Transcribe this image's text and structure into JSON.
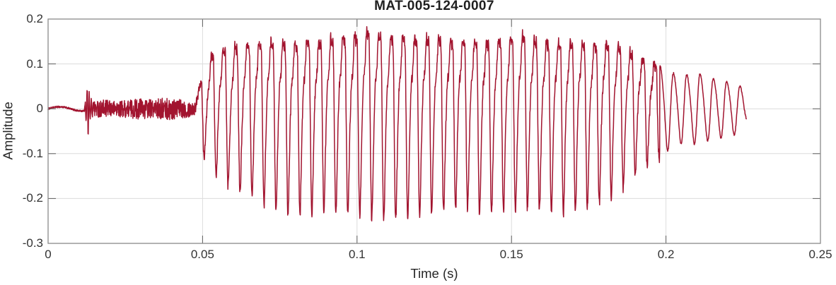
{
  "figure": {
    "title": "MAT-005-124-0007",
    "xlabel": "Time (s)",
    "ylabel": "Amplitude"
  },
  "chart_data": {
    "type": "line",
    "title": "MAT-005-124-0007",
    "xlabel": "Time (s)",
    "ylabel": "Amplitude",
    "xlim": [
      0,
      0.25
    ],
    "ylim": [
      -0.3,
      0.2
    ],
    "xticks": [
      0,
      0.05,
      0.1,
      0.15,
      0.2,
      0.25
    ],
    "xtick_labels": [
      "0",
      "0.05",
      "0.1",
      "0.15",
      "0.2",
      "0.25"
    ],
    "yticks": [
      -0.3,
      -0.2,
      -0.1,
      0,
      0.1,
      0.2
    ],
    "ytick_labels": [
      "-0.3",
      "-0.2",
      "-0.1",
      "0",
      "0.1",
      "0.2"
    ],
    "grid": true,
    "legend": null,
    "line_color": "#A2142F",
    "line_width": 1.5,
    "series_name": "audio waveform",
    "signal": {
      "description": "speech-like audio waveform: low-level noise, a click/burst at ~0.013 s, fricative noise until ~0.048 s, strong periodic voiced segment 0.048-0.198 s (peak +0.175, trough -0.25 near t=0.105-0.11), decaying smooth oscillation until 0.226 s",
      "duration_s": 0.226,
      "segments": [
        {
          "type": "quiet",
          "t": [
            0,
            0.0118
          ],
          "wiggle_hz": 70,
          "envelope": [
            [
              0,
              0.004
            ],
            [
              0.0118,
              0.005
            ]
          ]
        },
        {
          "type": "burst",
          "t": [
            0.0118,
            0.0148
          ],
          "freq_hz": 1500,
          "envelope": [
            [
              0.0118,
              0.006
            ],
            [
              0.0124,
              0.032
            ],
            [
              0.0127,
              0.058
            ],
            [
              0.013,
              0.045
            ],
            [
              0.0134,
              0.028
            ],
            [
              0.014,
              0.02
            ],
            [
              0.0148,
              0.016
            ]
          ]
        },
        {
          "type": "noise",
          "t": [
            0.0148,
            0.0478
          ],
          "envelope": [
            [
              0.0148,
              0.018
            ],
            [
              0.018,
              0.02
            ],
            [
              0.022,
              0.017
            ],
            [
              0.026,
              0.021
            ],
            [
              0.03,
              0.024
            ],
            [
              0.034,
              0.02
            ],
            [
              0.038,
              0.026
            ],
            [
              0.042,
              0.022
            ],
            [
              0.045,
              0.02
            ],
            [
              0.0478,
              0.014
            ]
          ]
        },
        {
          "type": "voiced",
          "t": [
            0.0478,
            0.198
          ],
          "f0_hz": 258,
          "phase": 0,
          "harmonics": [
            [
              1,
              1,
              0
            ],
            [
              2,
              0.45,
              2.2
            ],
            [
              3,
              0.18,
              4.2
            ],
            [
              4,
              0.07,
              1.0
            ]
          ],
          "upper_envelope": [
            [
              0.0478,
              0.03
            ],
            [
              0.05,
              0.07
            ],
            [
              0.053,
              0.12
            ],
            [
              0.056,
              0.135
            ],
            [
              0.06,
              0.14
            ],
            [
              0.07,
              0.15
            ],
            [
              0.08,
              0.15
            ],
            [
              0.09,
              0.155
            ],
            [
              0.095,
              0.16
            ],
            [
              0.1,
              0.165
            ],
            [
              0.104,
              0.175
            ],
            [
              0.11,
              0.16
            ],
            [
              0.12,
              0.158
            ],
            [
              0.13,
              0.155
            ],
            [
              0.14,
              0.15
            ],
            [
              0.148,
              0.155
            ],
            [
              0.153,
              0.165
            ],
            [
              0.16,
              0.15
            ],
            [
              0.17,
              0.148
            ],
            [
              0.18,
              0.148
            ],
            [
              0.185,
              0.14
            ],
            [
              0.19,
              0.12
            ],
            [
              0.194,
              0.105
            ],
            [
              0.198,
              0.095
            ]
          ],
          "lower_envelope": [
            [
              0.0478,
              -0.05
            ],
            [
              0.05,
              -0.1
            ],
            [
              0.053,
              -0.14
            ],
            [
              0.056,
              -0.16
            ],
            [
              0.06,
              -0.175
            ],
            [
              0.065,
              -0.195
            ],
            [
              0.07,
              -0.215
            ],
            [
              0.075,
              -0.23
            ],
            [
              0.08,
              -0.24
            ],
            [
              0.085,
              -0.235
            ],
            [
              0.09,
              -0.23
            ],
            [
              0.095,
              -0.235
            ],
            [
              0.1,
              -0.24
            ],
            [
              0.107,
              -0.25
            ],
            [
              0.112,
              -0.245
            ],
            [
              0.12,
              -0.24
            ],
            [
              0.128,
              -0.23
            ],
            [
              0.135,
              -0.22
            ],
            [
              0.14,
              -0.235
            ],
            [
              0.15,
              -0.23
            ],
            [
              0.157,
              -0.22
            ],
            [
              0.165,
              -0.235
            ],
            [
              0.17,
              -0.23
            ],
            [
              0.175,
              -0.22
            ],
            [
              0.18,
              -0.205
            ],
            [
              0.185,
              -0.185
            ],
            [
              0.19,
              -0.15
            ],
            [
              0.194,
              -0.125
            ],
            [
              0.198,
              -0.11
            ]
          ]
        },
        {
          "type": "tail",
          "t": [
            0.198,
            0.226
          ],
          "f0_hz": 232,
          "phase": 1.1,
          "harmonics": [
            [
              1,
              1,
              0
            ],
            [
              2,
              0.15,
              0.7
            ]
          ],
          "upper_envelope": [
            [
              0.198,
              0.095
            ],
            [
              0.202,
              0.08
            ],
            [
              0.206,
              0.075
            ],
            [
              0.21,
              0.08
            ],
            [
              0.214,
              0.07
            ],
            [
              0.218,
              0.065
            ],
            [
              0.222,
              0.055
            ],
            [
              0.226,
              0.045
            ]
          ],
          "lower_envelope": [
            [
              0.198,
              -0.11
            ],
            [
              0.202,
              -0.085
            ],
            [
              0.206,
              -0.075
            ],
            [
              0.21,
              -0.08
            ],
            [
              0.214,
              -0.07
            ],
            [
              0.218,
              -0.065
            ],
            [
              0.222,
              -0.06
            ],
            [
              0.226,
              -0.03
            ]
          ]
        }
      ]
    }
  },
  "colors": {
    "background": "#FFFFFF",
    "waveform": "#A2142F",
    "axis_box": "#8A8A8A",
    "tick_mark": "#5E5E5E",
    "grid_line": "#DCDCDC",
    "tick_text": "#333333",
    "label_text": "#262626"
  }
}
